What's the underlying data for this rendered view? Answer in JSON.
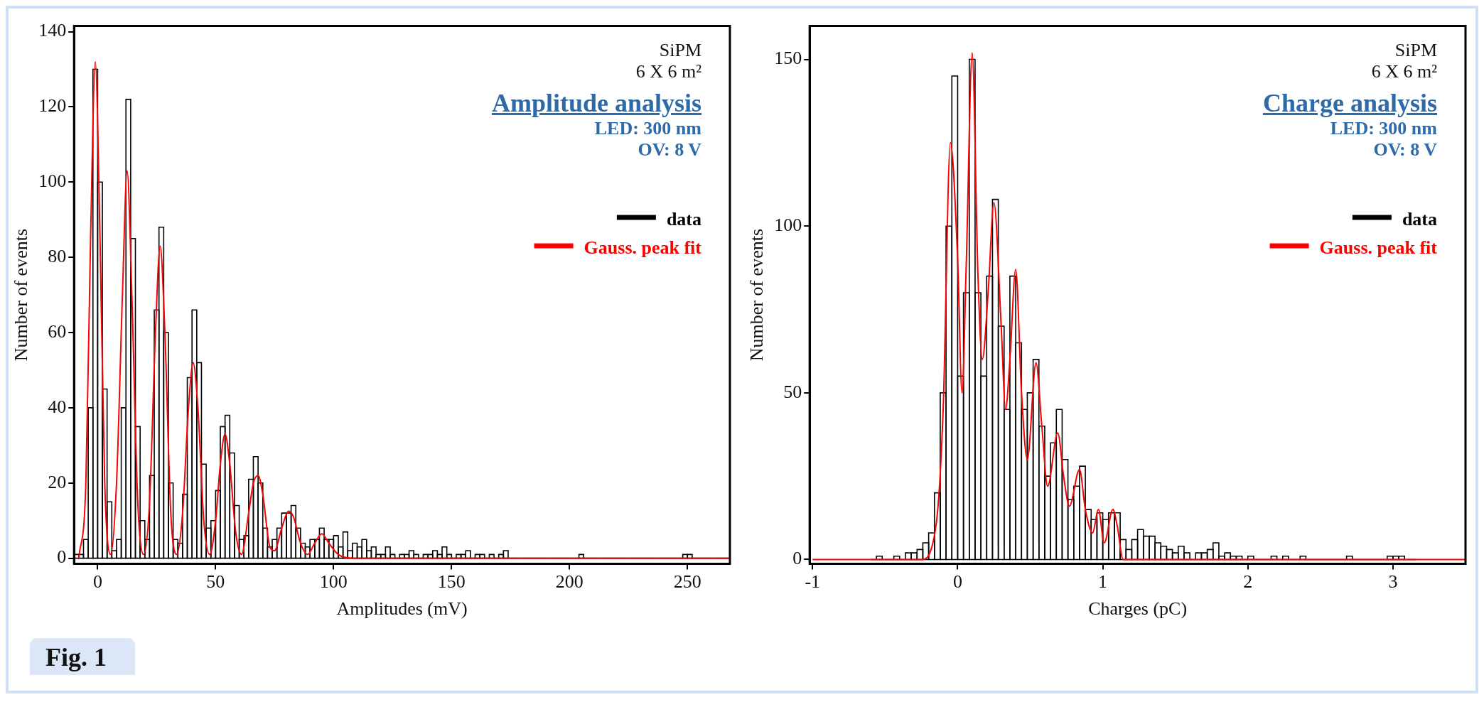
{
  "chart_data": [
    {
      "type": "histogram",
      "xlabel": "Amplitudes (mV)",
      "ylabel": "Number of events",
      "annotations": [
        "SiPM",
        "6 X 6 m²",
        "Amplitude analysis",
        "LED: 300 nm",
        "OV: 8 V",
        "Fig. 1"
      ],
      "xlim": [
        -10,
        268
      ],
      "xticks": [
        0,
        50,
        100,
        150,
        200,
        250
      ],
      "ylim": [
        -1.5,
        141.5
      ],
      "yticks": [
        0,
        20,
        40,
        60,
        80,
        100,
        120,
        140
      ],
      "legend": "top right",
      "series": [
        {
          "name": "data",
          "type": "histogram",
          "color": "#000000",
          "bins": [
            -10,
            -8,
            -6,
            -4,
            -2,
            0,
            2,
            4,
            6,
            8,
            10,
            12,
            14,
            16,
            18,
            20,
            22,
            24,
            26,
            28,
            30,
            32,
            34,
            36,
            38,
            40,
            42,
            44,
            46,
            48,
            50,
            52,
            54,
            56,
            58,
            60,
            62,
            64,
            66,
            68,
            70,
            72,
            74,
            76,
            78,
            80,
            82,
            84,
            86,
            88,
            90,
            92,
            94,
            96,
            98,
            100,
            102,
            104,
            106,
            108,
            110,
            112,
            114,
            116,
            118,
            120,
            122,
            124,
            126,
            128,
            130,
            132,
            134,
            136,
            138,
            140,
            142,
            144,
            146,
            148,
            150,
            152,
            154,
            156,
            158,
            160,
            162,
            164,
            166,
            168,
            170,
            172,
            174,
            176,
            178,
            180,
            182,
            184,
            186,
            188,
            190,
            192,
            194,
            196,
            198,
            200,
            202,
            204,
            206,
            208,
            210,
            212,
            214,
            216,
            218,
            220,
            222,
            224,
            226,
            228,
            230,
            232,
            234,
            236,
            238,
            240,
            242,
            244,
            246,
            248,
            250,
            252,
            254,
            256,
            258,
            260,
            262,
            264,
            266,
            268
          ],
          "values": [
            1,
            1,
            5,
            40,
            130,
            100,
            45,
            15,
            2,
            5,
            40,
            122,
            85,
            35,
            10,
            5,
            22,
            66,
            88,
            60,
            20,
            5,
            4,
            17,
            48,
            66,
            52,
            25,
            8,
            10,
            18,
            35,
            38,
            28,
            14,
            5,
            6,
            21,
            27,
            20,
            8,
            3,
            5,
            8,
            12,
            12,
            14,
            8,
            4,
            3,
            5,
            5,
            8,
            5,
            5,
            6,
            3,
            7,
            2,
            4,
            3,
            5,
            2,
            3,
            1,
            1,
            3,
            1,
            0,
            1,
            1,
            2,
            1,
            0,
            1,
            1,
            2,
            1,
            3,
            1,
            0,
            1,
            1,
            2,
            0,
            1,
            1,
            0,
            1,
            0,
            1,
            2,
            0,
            0,
            0,
            0,
            0,
            0,
            0,
            0,
            0,
            0,
            0,
            0,
            0,
            0,
            0,
            1,
            0,
            0,
            0,
            0,
            0,
            0,
            0,
            0,
            0,
            0,
            0,
            0,
            0,
            0,
            0,
            0,
            0,
            0,
            0,
            0,
            0,
            1,
            1,
            0,
            0,
            0,
            0,
            0,
            0,
            0,
            0
          ]
        },
        {
          "name": "Gauss. peak fit",
          "type": "line",
          "color": "#ff0000",
          "x": [
            -8,
            -5,
            -3,
            -1,
            1,
            3,
            5.5,
            8,
            10.5,
            12.5,
            14.5,
            17,
            19.5,
            22,
            24.5,
            26.5,
            28.5,
            31,
            33.5,
            36,
            38.5,
            40.5,
            42.5,
            45,
            47.5,
            50,
            52,
            54,
            56,
            58.5,
            61,
            64,
            66,
            68,
            70,
            73,
            75,
            78,
            81,
            83,
            86,
            89,
            92,
            95,
            98,
            102,
            108,
            268
          ],
          "values": [
            0,
            20,
            85,
            132,
            85,
            20,
            1,
            20,
            70,
            103,
            70,
            15,
            1,
            15,
            60,
            83,
            60,
            12,
            1,
            12,
            40,
            52,
            40,
            10,
            1,
            10,
            25,
            33,
            25,
            7,
            1,
            12,
            20,
            22,
            17,
            3,
            2,
            8,
            12.5,
            11,
            4,
            1,
            4,
            6.5,
            4,
            1,
            0,
            0
          ]
        }
      ]
    },
    {
      "type": "histogram",
      "xlabel": "Charges (pC)",
      "ylabel": "Number of events",
      "annotations": [
        "SiPM",
        "6 X 6 m²",
        "Charge analysis",
        "LED: 300 nm",
        "OV: 8 V"
      ],
      "xlim": [
        -1.02,
        3.5
      ],
      "xticks": [
        -1,
        0,
        1,
        2,
        3
      ],
      "ylim": [
        -1.3,
        160
      ],
      "yticks": [
        0,
        50,
        100,
        150
      ],
      "legend": "top right",
      "series": [
        {
          "name": "data",
          "type": "histogram",
          "color": "#000000",
          "bins": [
            -0.6,
            -0.56,
            -0.52,
            -0.48,
            -0.44,
            -0.4,
            -0.36,
            -0.32,
            -0.28,
            -0.24,
            -0.2,
            -0.16,
            -0.12,
            -0.08,
            -0.04,
            0,
            0.04,
            0.08,
            0.12,
            0.16,
            0.2,
            0.24,
            0.28,
            0.32,
            0.36,
            0.4,
            0.44,
            0.48,
            0.52,
            0.56,
            0.6,
            0.64,
            0.68,
            0.72,
            0.76,
            0.8,
            0.84,
            0.88,
            0.92,
            0.96,
            1,
            1.04,
            1.08,
            1.12,
            1.16,
            1.2,
            1.24,
            1.28,
            1.32,
            1.36,
            1.4,
            1.44,
            1.48,
            1.52,
            1.56,
            1.6,
            1.64,
            1.68,
            1.72,
            1.76,
            1.8,
            1.84,
            1.88,
            1.92,
            1.96,
            2,
            2.04,
            2.08,
            2.12,
            2.16,
            2.2,
            2.24,
            2.28,
            2.32,
            2.36,
            2.4,
            2.44,
            2.48,
            2.52,
            2.56,
            2.6,
            2.64,
            2.68,
            2.72,
            2.76,
            2.8,
            2.84,
            2.88,
            2.92,
            2.96,
            3,
            3.04,
            3.08,
            3.12,
            3.16
          ],
          "values": [
            0,
            1,
            0,
            0,
            1,
            0,
            2,
            2,
            3,
            5,
            8,
            20,
            50,
            100,
            145,
            55,
            80,
            150,
            80,
            55,
            85,
            108,
            70,
            45,
            85,
            65,
            45,
            50,
            60,
            40,
            25,
            35,
            45,
            30,
            18,
            22,
            28,
            15,
            12,
            14,
            12,
            14,
            14,
            6,
            3,
            6,
            9,
            7,
            7,
            5,
            4,
            3,
            2,
            4,
            2,
            0,
            2,
            2,
            3,
            5,
            1,
            2,
            1,
            1,
            0,
            1,
            0,
            0,
            0,
            1,
            0,
            1,
            0,
            0,
            1,
            0,
            0,
            0,
            0,
            0,
            0,
            0,
            1,
            0,
            0,
            0,
            0,
            0,
            0,
            1,
            1,
            1,
            0,
            0
          ]
        },
        {
          "name": "Gauss. peak fit",
          "type": "line",
          "color": "#ff0000",
          "x": [
            -1,
            -0.25,
            -0.15,
            -0.1,
            -0.05,
            0,
            0.03,
            0.06,
            0.1,
            0.14,
            0.17,
            0.21,
            0.25,
            0.3,
            0.33,
            0.36,
            0.4,
            0.44,
            0.48,
            0.54,
            0.58,
            0.62,
            0.69,
            0.73,
            0.77,
            0.84,
            0.88,
            0.93,
            0.97,
            1.01,
            1.07,
            1.1,
            1.14,
            3.5
          ],
          "values": [
            0,
            0,
            10,
            45,
            125,
            90,
            50,
            90,
            152,
            85,
            60,
            80,
            107,
            70,
            45,
            60,
            87,
            50,
            30,
            59,
            40,
            22,
            38,
            25,
            16,
            27,
            15,
            8,
            15,
            5,
            15,
            10,
            0,
            0
          ]
        }
      ]
    }
  ]
}
